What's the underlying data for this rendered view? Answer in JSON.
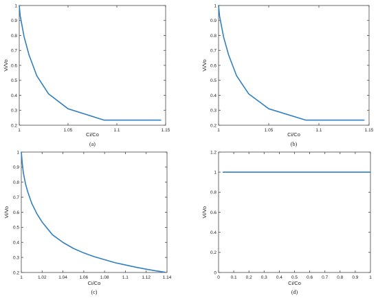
{
  "colors": {
    "line": "#2f7fc1",
    "axis": "#444444",
    "text": "#222222"
  },
  "chart_data": [
    {
      "panel": "(a)",
      "type": "line",
      "xlabel": "Ci/Co",
      "ylabel": "Vi/Vo",
      "xlim": [
        1,
        1.15
      ],
      "ylim": [
        0.2,
        1
      ],
      "xticks": [
        1,
        1.05,
        1.1,
        1.15
      ],
      "xtick_labels": [
        "1",
        "1.05",
        "1.1",
        "1.15"
      ],
      "yticks": [
        0.2,
        0.3,
        0.4,
        0.5,
        0.6,
        0.7,
        0.8,
        0.9,
        1
      ],
      "ytick_labels": [
        "0.2",
        "0.3",
        "0.4",
        "0.5",
        "0.6",
        "0.7",
        "0.8",
        "0.9",
        "1"
      ],
      "grid": false,
      "series": [
        {
          "x": [
            1.0,
            1.001,
            1.003,
            1.005,
            1.01,
            1.018,
            1.03,
            1.05,
            1.087,
            1.145
          ],
          "y": [
            1.0,
            0.93,
            0.86,
            0.79,
            0.67,
            0.53,
            0.41,
            0.31,
            0.234,
            0.234
          ]
        }
      ]
    },
    {
      "panel": "(b)",
      "type": "line",
      "xlabel": "Ci/Co",
      "ylabel": "Vi/Vo",
      "xlim": [
        1,
        1.15
      ],
      "ylim": [
        0.2,
        1
      ],
      "xticks": [
        1,
        1.05,
        1.1,
        1.15
      ],
      "xtick_labels": [
        "1",
        "1.05",
        "1.1",
        "1.15"
      ],
      "yticks": [
        0.2,
        0.3,
        0.4,
        0.5,
        0.6,
        0.7,
        0.8,
        0.9,
        1
      ],
      "ytick_labels": [
        "0.2",
        "0.3",
        "0.4",
        "0.5",
        "0.6",
        "0.7",
        "0.8",
        "0.9",
        "1"
      ],
      "grid": false,
      "series": [
        {
          "x": [
            1.0,
            1.001,
            1.003,
            1.005,
            1.01,
            1.018,
            1.03,
            1.05,
            1.087,
            1.145
          ],
          "y": [
            1.0,
            0.93,
            0.86,
            0.79,
            0.67,
            0.53,
            0.41,
            0.31,
            0.234,
            0.234
          ]
        }
      ]
    },
    {
      "panel": "(c)",
      "type": "line",
      "xlabel": "Ci/Co",
      "ylabel": "Vi/Vo",
      "xlim": [
        1,
        1.14
      ],
      "ylim": [
        0.2,
        1
      ],
      "xticks": [
        1,
        1.02,
        1.04,
        1.06,
        1.08,
        1.1,
        1.12,
        1.14
      ],
      "xtick_labels": [
        "1",
        "1.02",
        "1.04",
        "1.06",
        "1.08",
        "1.1",
        "1.12",
        "1.14"
      ],
      "yticks": [
        0.2,
        0.3,
        0.4,
        0.5,
        0.6,
        0.7,
        0.8,
        0.9,
        1
      ],
      "ytick_labels": [
        "0.2",
        "0.3",
        "0.4",
        "0.5",
        "0.6",
        "0.7",
        "0.8",
        "0.9",
        "1"
      ],
      "grid": false,
      "series": [
        {
          "x": [
            1.0,
            1.001,
            1.002,
            1.004,
            1.006,
            1.008,
            1.01,
            1.015,
            1.02,
            1.03,
            1.04,
            1.05,
            1.06,
            1.07,
            1.08,
            1.09,
            1.1,
            1.11,
            1.12,
            1.13,
            1.138
          ],
          "y": [
            1.0,
            0.92,
            0.86,
            0.79,
            0.74,
            0.7,
            0.66,
            0.59,
            0.535,
            0.45,
            0.4,
            0.36,
            0.33,
            0.305,
            0.285,
            0.265,
            0.25,
            0.235,
            0.222,
            0.21,
            0.202
          ]
        }
      ]
    },
    {
      "panel": "(d)",
      "type": "line",
      "xlabel": "Ci/Co",
      "ylabel": "Vi/Vo",
      "xlim": [
        0,
        1
      ],
      "ylim": [
        0,
        1.2
      ],
      "xticks": [
        0,
        0.1,
        0.2,
        0.3,
        0.4,
        0.5,
        0.6,
        0.7,
        0.8,
        0.9,
        1
      ],
      "xtick_labels": [
        "0",
        "0.1",
        "0.2",
        "0.3",
        "0.4",
        "0.5",
        "0.6",
        "0.7",
        "0.8",
        "0.9",
        "1"
      ],
      "yticks": [
        0,
        0.2,
        0.4,
        0.6,
        0.8,
        1,
        1.2
      ],
      "ytick_labels": [
        "0",
        "0.2",
        "0.4",
        "0.6",
        "0.8",
        "1",
        "1.2"
      ],
      "grid": false,
      "series": [
        {
          "x": [
            0.03,
            1.0
          ],
          "y": [
            1.0,
            1.0
          ]
        }
      ]
    }
  ]
}
